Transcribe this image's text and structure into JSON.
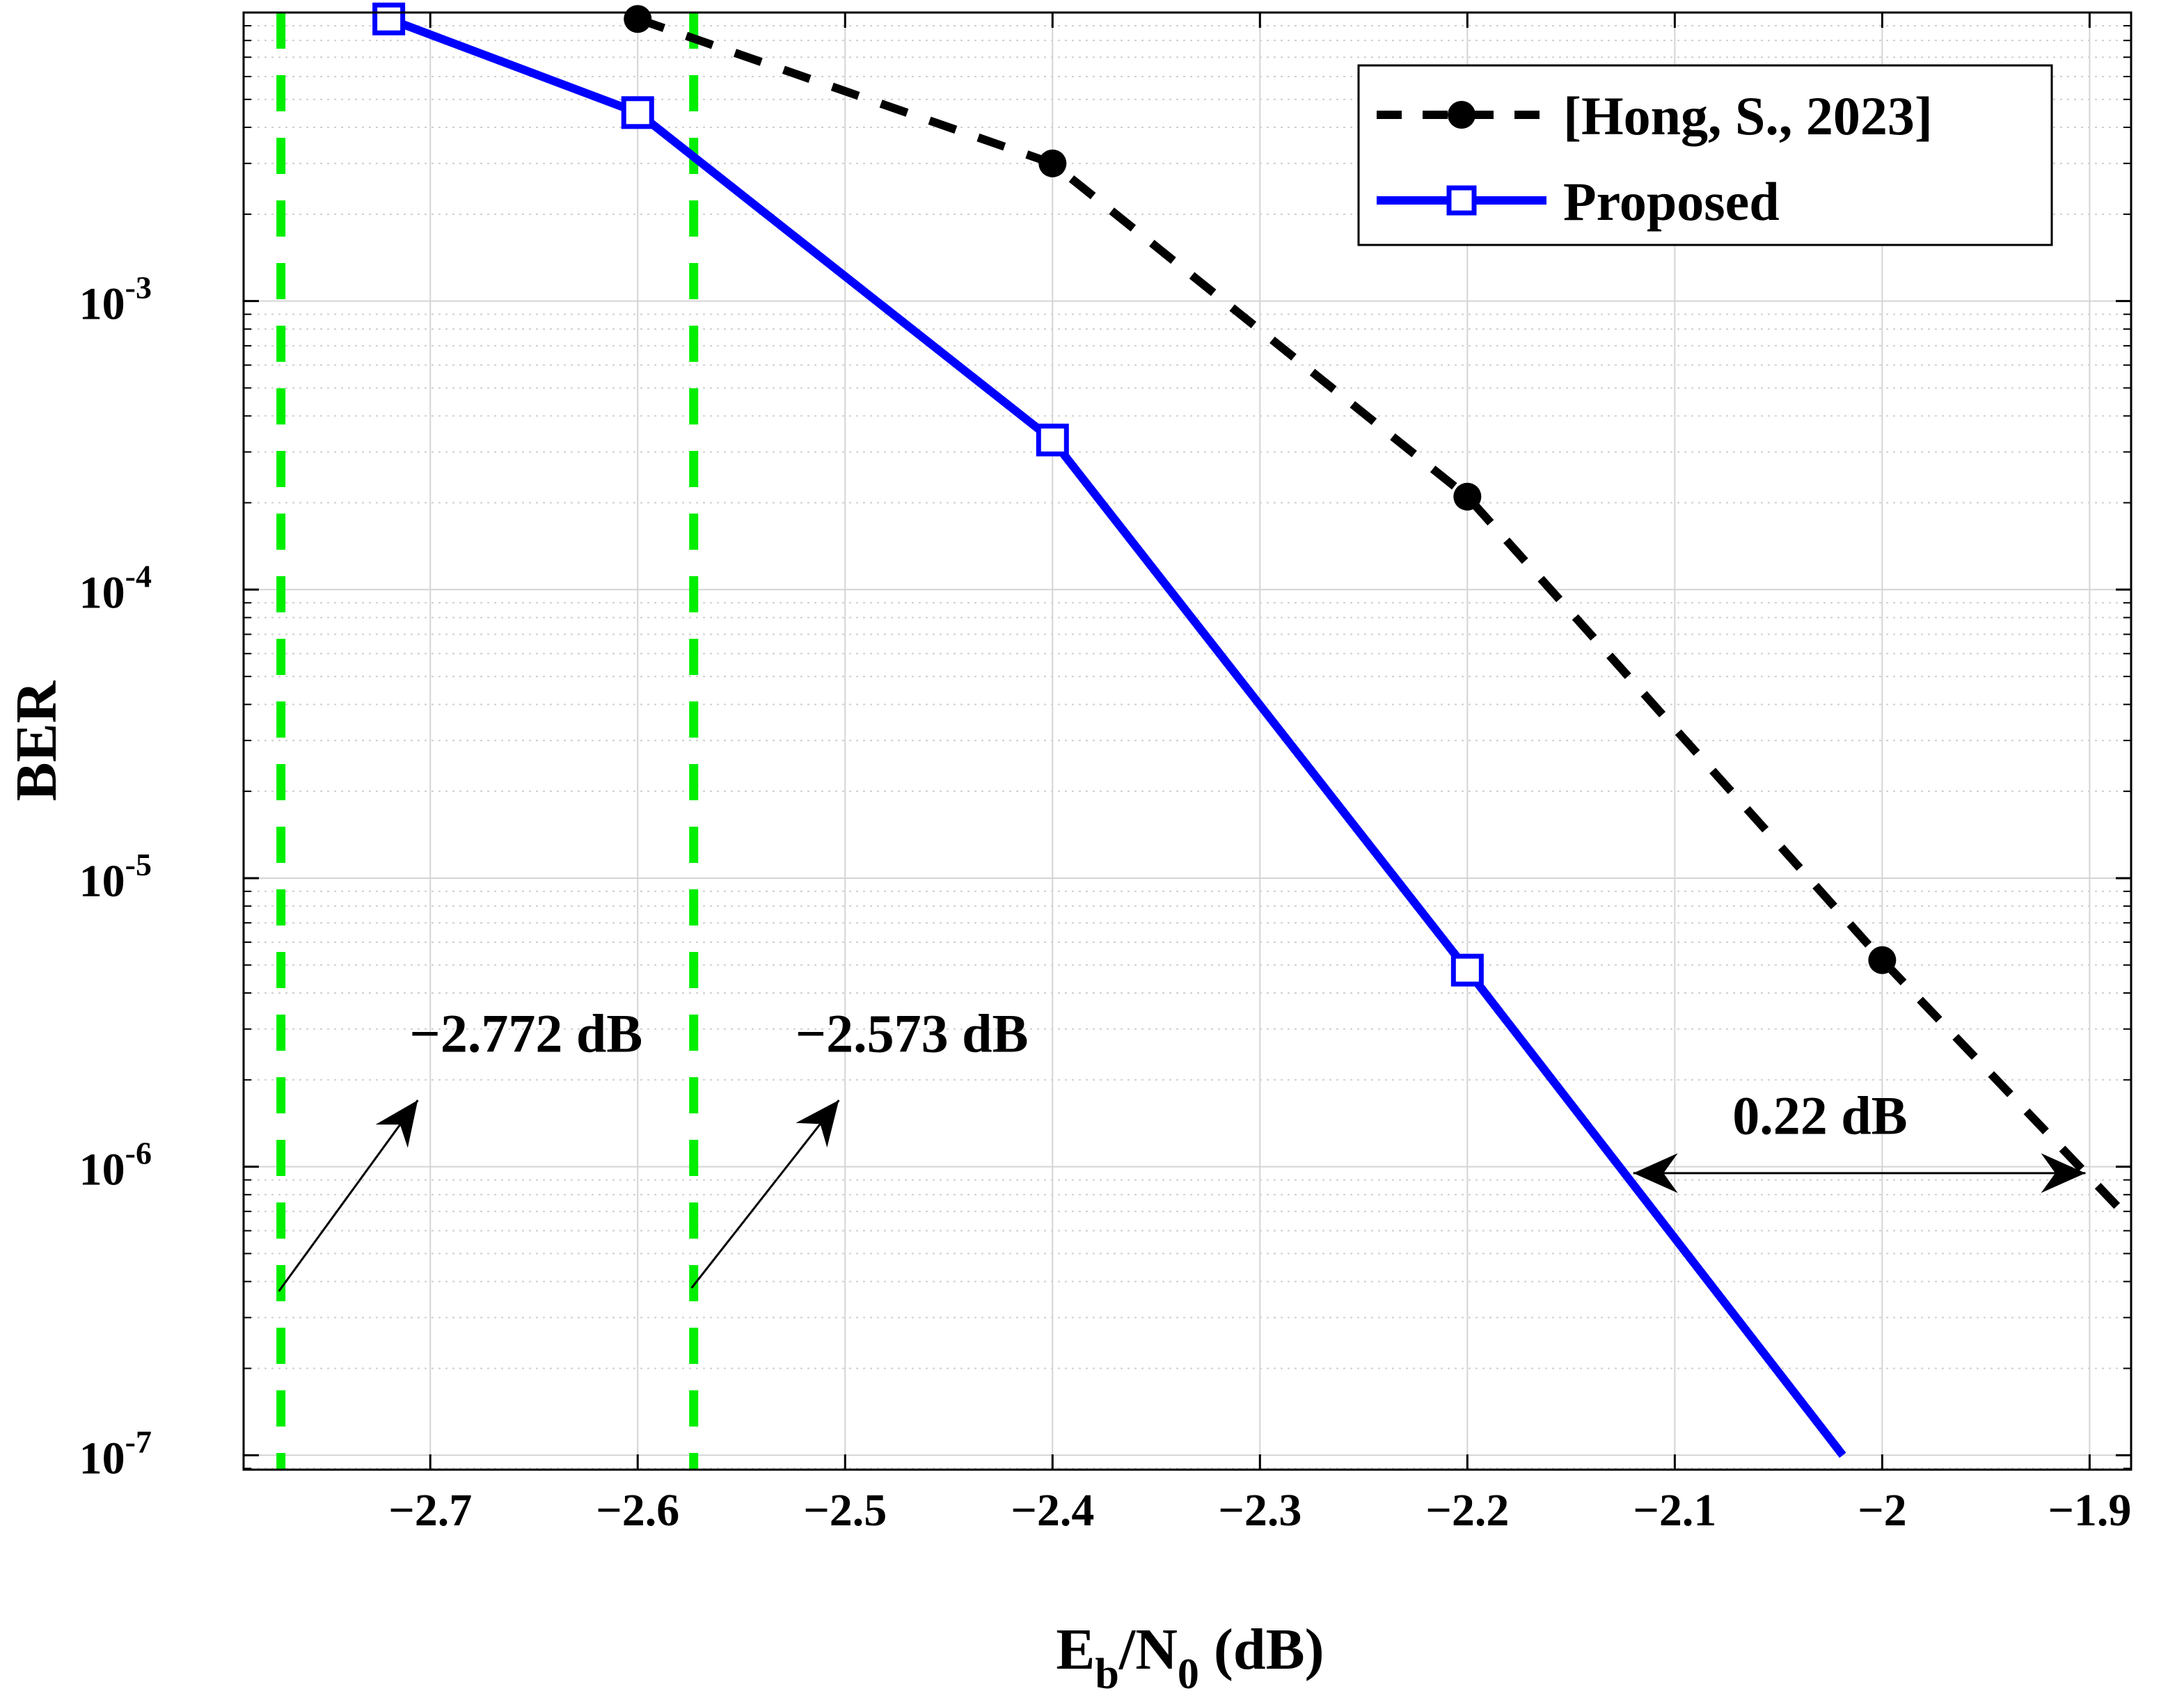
{
  "chart_data": {
    "type": "line",
    "xlabel_main": "E",
    "xlabel_sub1": "b",
    "xlabel_mid": "/N",
    "xlabel_sub2": "0",
    "xlabel_tail": " (dB)",
    "ylabel": "BER",
    "xlim": [
      -2.79,
      -1.88
    ],
    "ylim_log10": [
      -7.05,
      -2.0
    ],
    "yscale": "log",
    "grid": true,
    "minor_grid": true,
    "legend_position": "top-right",
    "x_ticks": [
      -2.7,
      -2.6,
      -2.5,
      -2.4,
      -2.3,
      -2.2,
      -2.1,
      -2.0,
      -1.9
    ],
    "x_tick_labels": [
      "−2.7",
      "−2.6",
      "−2.5",
      "−2.4",
      "−2.3",
      "−2.2",
      "−2.1",
      "−2",
      "−1.9"
    ],
    "y_ticks": [
      {
        "exp": -3,
        "base": "10",
        "sup": "-3"
      },
      {
        "exp": -4,
        "base": "10",
        "sup": "-4"
      },
      {
        "exp": -5,
        "base": "10",
        "sup": "-5"
      },
      {
        "exp": -6,
        "base": "10",
        "sup": "-6"
      },
      {
        "exp": -7,
        "base": "10",
        "sup": "-7"
      }
    ],
    "series": [
      {
        "name": "[Hong, S., 2023]",
        "color": "#000000",
        "style": "dashed",
        "marker": "circle",
        "x": [
          -2.6,
          -2.4,
          -2.2,
          -2.0,
          -1.88
        ],
        "y": [
          0.0095,
          0.003,
          0.00021,
          5.2e-06,
          6.5e-07
        ],
        "marker_count": 4
      },
      {
        "name": "Proposed",
        "color": "#0000ff",
        "style": "solid",
        "marker": "square",
        "x": [
          -2.72,
          -2.6,
          -2.4,
          -2.2,
          -2.019
        ],
        "y": [
          0.0095,
          0.0045,
          0.00033,
          4.8e-06,
          1e-07
        ],
        "marker_count": 4
      }
    ],
    "vlines": [
      {
        "x": -2.772,
        "color": "#00ee00",
        "style": "dashed"
      },
      {
        "x": -2.573,
        "color": "#00ee00",
        "style": "dashed"
      }
    ],
    "annotations": [
      {
        "text": "−2.772 dB",
        "text_x": -2.71,
        "text_y": 2.5e-06,
        "arrow_from": [
          -2.773,
          3.7e-07
        ],
        "arrow_to": [
          -2.706,
          1.7e-06
        ]
      },
      {
        "text": "−2.573 dB",
        "text_x": -2.524,
        "text_y": 2.5e-06,
        "arrow_from": [
          -2.574,
          3.8e-07
        ],
        "arrow_to": [
          -2.503,
          1.7e-06
        ]
      },
      {
        "text": "0.22 dB",
        "text_x": -2.03,
        "text_y": 1.3e-06,
        "arrow_from": [
          -2.12,
          9.5e-07
        ],
        "arrow_to": [
          -1.902,
          9.5e-07
        ],
        "double": true
      }
    ]
  }
}
